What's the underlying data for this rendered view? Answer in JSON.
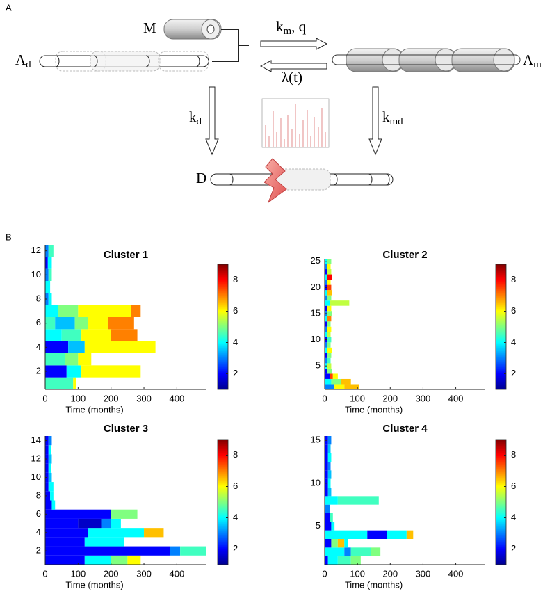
{
  "panel_labels": [
    "A",
    "B"
  ],
  "diagram": {
    "M": "M",
    "A_d": {
      "base": "A",
      "sub": "d"
    },
    "A_m": {
      "base": "A",
      "sub": "m"
    },
    "k_m_q": {
      "base": "k",
      "sub": "m",
      "rest": ", q"
    },
    "lambda": "λ(t)",
    "k_d": {
      "base": "k",
      "sub": "d"
    },
    "k_md": {
      "base": "k",
      "sub": "md"
    },
    "D": "D"
  },
  "chart_data": [
    {
      "type": "heatmap-timeline",
      "title": "Cluster 1",
      "xlabel": "Time (months)",
      "xlim": [
        0,
        490
      ],
      "xticks": [
        0,
        100,
        200,
        300,
        400
      ],
      "ylim": [
        0.5,
        12.5
      ],
      "yticks": [
        2,
        4,
        6,
        8,
        10,
        12
      ],
      "colorbar": {
        "lim": [
          1,
          9
        ],
        "ticks": [
          2,
          4,
          6,
          8
        ]
      },
      "colormap": [
        "#00008f",
        "#0000ff",
        "#0080ff",
        "#00ffff",
        "#80ff80",
        "#ffff00",
        "#ff8000",
        "#ff0000",
        "#800000"
      ],
      "rows": [
        [
          [
            0,
            85,
            4.5
          ],
          [
            85,
            95,
            6
          ]
        ],
        [
          [
            0,
            65,
            2
          ],
          [
            65,
            110,
            4
          ],
          [
            110,
            290,
            6
          ]
        ],
        [
          [
            0,
            60,
            4.5
          ],
          [
            60,
            100,
            5
          ],
          [
            100,
            140,
            6
          ]
        ],
        [
          [
            0,
            70,
            2
          ],
          [
            70,
            120,
            3.5
          ],
          [
            120,
            335,
            6
          ]
        ],
        [
          [
            0,
            50,
            4
          ],
          [
            50,
            110,
            4.5
          ],
          [
            110,
            200,
            6
          ],
          [
            200,
            280,
            7
          ]
        ],
        [
          [
            0,
            30,
            4.5
          ],
          [
            30,
            90,
            3.5
          ],
          [
            90,
            130,
            5
          ],
          [
            130,
            190,
            6
          ],
          [
            190,
            270,
            7
          ]
        ],
        [
          [
            0,
            40,
            4
          ],
          [
            40,
            100,
            5
          ],
          [
            100,
            260,
            6
          ],
          [
            260,
            290,
            7
          ]
        ],
        [
          [
            0,
            10,
            3
          ],
          [
            10,
            20,
            4
          ]
        ],
        [
          [
            0,
            15,
            4
          ]
        ],
        [
          [
            0,
            10,
            3
          ],
          [
            10,
            20,
            4.5
          ]
        ],
        [
          [
            0,
            8,
            2
          ],
          [
            8,
            20,
            4
          ]
        ],
        [
          [
            0,
            10,
            3
          ],
          [
            10,
            25,
            4.5
          ]
        ]
      ]
    },
    {
      "type": "heatmap-timeline",
      "title": "Cluster 2",
      "xlabel": "Time (months)",
      "xlim": [
        0,
        490
      ],
      "xticks": [
        0,
        100,
        200,
        300,
        400
      ],
      "ylim": [
        0.5,
        25.5
      ],
      "yticks": [
        5,
        10,
        15,
        20,
        25
      ],
      "colorbar": {
        "lim": [
          1,
          9
        ],
        "ticks": [
          2,
          4,
          6,
          8
        ]
      },
      "colormap": [
        "#00008f",
        "#0000ff",
        "#0080ff",
        "#00ffff",
        "#80ff80",
        "#ffff00",
        "#ff8000",
        "#ff0000",
        "#800000"
      ],
      "rows": [
        [
          [
            0,
            30,
            3
          ],
          [
            30,
            60,
            6
          ],
          [
            60,
            105,
            6.5
          ]
        ],
        [
          [
            0,
            20,
            4
          ],
          [
            20,
            50,
            5
          ],
          [
            50,
            80,
            6.5
          ]
        ],
        [
          [
            0,
            15,
            2
          ],
          [
            15,
            25,
            7.5
          ],
          [
            25,
            40,
            6
          ]
        ],
        [
          [
            0,
            8,
            2
          ],
          [
            8,
            22,
            5
          ]
        ],
        [
          [
            0,
            8,
            4
          ],
          [
            8,
            20,
            5.5
          ]
        ],
        [
          [
            0,
            8,
            3
          ],
          [
            8,
            18,
            4.5
          ]
        ],
        [
          [
            0,
            8,
            2
          ],
          [
            8,
            20,
            5
          ]
        ],
        [
          [
            0,
            8,
            4
          ],
          [
            8,
            22,
            6
          ]
        ],
        [
          [
            0,
            8,
            3
          ],
          [
            8,
            18,
            5
          ]
        ],
        [
          [
            0,
            8,
            2
          ],
          [
            8,
            20,
            4.5
          ]
        ],
        [
          [
            0,
            8,
            4
          ],
          [
            8,
            18,
            5.5
          ]
        ],
        [
          [
            0,
            8,
            3
          ],
          [
            8,
            20,
            6
          ]
        ],
        [
          [
            0,
            8,
            2
          ],
          [
            8,
            18,
            5
          ]
        ],
        [
          [
            0,
            8,
            4
          ],
          [
            8,
            20,
            7
          ]
        ],
        [
          [
            0,
            8,
            3
          ],
          [
            8,
            22,
            5
          ]
        ],
        [
          [
            0,
            8,
            2
          ],
          [
            8,
            20,
            6
          ]
        ],
        [
          [
            0,
            15,
            4
          ],
          [
            15,
            75,
            5.5
          ]
        ],
        [
          [
            0,
            8,
            3
          ],
          [
            8,
            20,
            5
          ]
        ],
        [
          [
            0,
            8,
            4
          ],
          [
            8,
            22,
            6.5
          ]
        ],
        [
          [
            0,
            8,
            2
          ],
          [
            8,
            20,
            7.5
          ]
        ],
        [
          [
            0,
            8,
            3
          ],
          [
            8,
            18,
            6
          ]
        ],
        [
          [
            0,
            8,
            4
          ],
          [
            8,
            22,
            8
          ]
        ],
        [
          [
            0,
            8,
            2
          ],
          [
            8,
            20,
            5.5
          ]
        ],
        [
          [
            0,
            8,
            3
          ],
          [
            8,
            18,
            6
          ]
        ],
        [
          [
            0,
            8,
            4
          ],
          [
            8,
            20,
            5
          ]
        ]
      ]
    },
    {
      "type": "heatmap-timeline",
      "title": "Cluster 3",
      "xlabel": "Time (months)",
      "xlim": [
        0,
        490
      ],
      "xticks": [
        0,
        100,
        200,
        300,
        400
      ],
      "ylim": [
        0.5,
        14.5
      ],
      "yticks": [
        2,
        4,
        6,
        8,
        10,
        12,
        14
      ],
      "colorbar": {
        "lim": [
          1,
          9
        ],
        "ticks": [
          2,
          4,
          6,
          8
        ]
      },
      "colormap": [
        "#00008f",
        "#0000ff",
        "#0080ff",
        "#00ffff",
        "#80ff80",
        "#ffff00",
        "#ff8000",
        "#ff0000",
        "#800000"
      ],
      "rows": [
        [
          [
            0,
            120,
            2
          ],
          [
            120,
            200,
            4
          ],
          [
            200,
            250,
            5
          ],
          [
            250,
            290,
            6
          ]
        ],
        [
          [
            0,
            380,
            2
          ],
          [
            380,
            410,
            3
          ],
          [
            410,
            490,
            4.5
          ]
        ],
        [
          [
            0,
            120,
            2
          ],
          [
            120,
            240,
            4
          ]
        ],
        [
          [
            0,
            130,
            2
          ],
          [
            130,
            300,
            4
          ],
          [
            300,
            360,
            6.5
          ]
        ],
        [
          [
            0,
            100,
            2
          ],
          [
            100,
            170,
            1.5
          ],
          [
            170,
            200,
            3
          ],
          [
            200,
            230,
            4
          ]
        ],
        [
          [
            0,
            200,
            2
          ],
          [
            200,
            280,
            5
          ]
        ],
        [
          [
            0,
            20,
            2
          ],
          [
            20,
            30,
            4
          ]
        ],
        [
          [
            0,
            15,
            2
          ],
          [
            15,
            25,
            4
          ]
        ],
        [
          [
            0,
            10,
            2
          ],
          [
            10,
            25,
            4
          ]
        ],
        [
          [
            0,
            10,
            2
          ],
          [
            10,
            20,
            3.5
          ]
        ],
        [
          [
            0,
            10,
            2
          ],
          [
            10,
            18,
            4
          ]
        ],
        [
          [
            0,
            10,
            2
          ],
          [
            10,
            20,
            3.5
          ]
        ],
        [
          [
            0,
            10,
            2
          ],
          [
            10,
            18,
            4
          ]
        ],
        [
          [
            0,
            10,
            2
          ],
          [
            10,
            20,
            3
          ]
        ]
      ]
    },
    {
      "type": "heatmap-timeline",
      "title": "Cluster 4",
      "xlabel": "Time (months)",
      "xlim": [
        0,
        490
      ],
      "xticks": [
        0,
        100,
        200,
        300,
        400
      ],
      "ylim": [
        0.5,
        15.5
      ],
      "yticks": [
        5,
        10,
        15
      ],
      "colorbar": {
        "lim": [
          1,
          9
        ],
        "ticks": [
          2,
          4,
          6,
          8
        ]
      },
      "colormap": [
        "#00008f",
        "#0000ff",
        "#0080ff",
        "#00ffff",
        "#80ff80",
        "#ffff00",
        "#ff8000",
        "#ff0000",
        "#800000"
      ],
      "rows": [
        [
          [
            0,
            10,
            2
          ],
          [
            10,
            40,
            4
          ],
          [
            40,
            80,
            4.5
          ],
          [
            80,
            110,
            5
          ]
        ],
        [
          [
            0,
            60,
            4
          ],
          [
            60,
            80,
            3
          ],
          [
            80,
            140,
            4.5
          ],
          [
            140,
            170,
            5
          ]
        ],
        [
          [
            0,
            20,
            2
          ],
          [
            20,
            40,
            5
          ],
          [
            40,
            60,
            6.5
          ],
          [
            60,
            70,
            4
          ]
        ],
        [
          [
            0,
            130,
            4
          ],
          [
            130,
            190,
            2
          ],
          [
            190,
            250,
            4
          ],
          [
            250,
            270,
            6.5
          ]
        ],
        [
          [
            0,
            20,
            2
          ],
          [
            20,
            30,
            4
          ]
        ],
        [
          [
            0,
            15,
            2
          ],
          [
            15,
            25,
            4.5
          ]
        ],
        [
          [
            0,
            15,
            3
          ]
        ],
        [
          [
            0,
            40,
            4
          ],
          [
            40,
            165,
            4.5
          ]
        ],
        [
          [
            0,
            10,
            2
          ],
          [
            10,
            20,
            3.5
          ]
        ],
        [
          [
            0,
            10,
            2
          ],
          [
            10,
            18,
            4
          ]
        ],
        [
          [
            0,
            10,
            2
          ],
          [
            10,
            20,
            3.5
          ]
        ],
        [
          [
            0,
            10,
            2
          ],
          [
            10,
            18,
            3
          ]
        ],
        [
          [
            0,
            10,
            2
          ],
          [
            10,
            20,
            4
          ]
        ],
        [
          [
            0,
            10,
            2
          ],
          [
            10,
            18,
            3.5
          ]
        ],
        [
          [
            0,
            10,
            2
          ],
          [
            10,
            20,
            3
          ]
        ]
      ]
    }
  ]
}
